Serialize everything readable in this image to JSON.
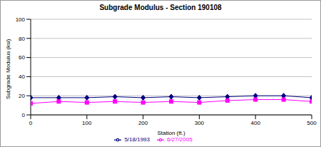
{
  "chart_data": {
    "type": "line",
    "title": "Subgrade Modulus - Section 190108",
    "x_label": "Station (ft.)",
    "y_label": "Subgrade Modulus (ksi)",
    "x": [
      0,
      50,
      100,
      150,
      200,
      250,
      300,
      350,
      400,
      450,
      500
    ],
    "series": [
      {
        "name": "5/18/1993",
        "color": "#000080",
        "marker": "diamond",
        "values": [
          18,
          18,
          18,
          19,
          18,
          19,
          18,
          19,
          20,
          20,
          18
        ]
      },
      {
        "name": "6/27/2005",
        "color": "#ff00ff",
        "marker": "square",
        "values": [
          12,
          14,
          13,
          14,
          13,
          14,
          13,
          15,
          16,
          16,
          14
        ]
      }
    ],
    "xlim": [
      0,
      500
    ],
    "xticks": [
      0,
      100,
      200,
      300,
      400,
      500
    ],
    "ylim": [
      0,
      100
    ],
    "yticks": [
      0,
      20,
      40,
      60,
      80,
      100
    ],
    "grid": true,
    "legend": "bottom"
  }
}
